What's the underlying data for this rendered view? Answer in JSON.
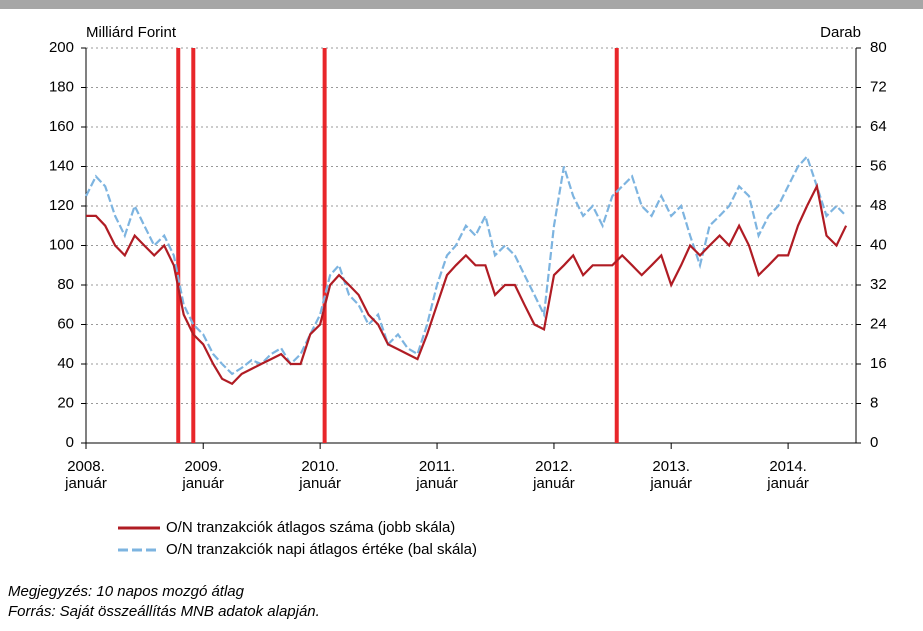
{
  "chart_data": {
    "type": "line",
    "y_label": "Milliárd Forint",
    "y2_label": "Darab",
    "x": [
      "2008-01",
      "2008-02",
      "2008-03",
      "2008-04",
      "2008-05",
      "2008-06",
      "2008-07",
      "2008-08",
      "2008-09",
      "2008-10",
      "2008-11",
      "2008-12",
      "2009-01",
      "2009-02",
      "2009-03",
      "2009-04",
      "2009-05",
      "2009-06",
      "2009-07",
      "2009-08",
      "2009-09",
      "2009-10",
      "2009-11",
      "2009-12",
      "2010-01",
      "2010-02",
      "2010-03",
      "2010-04",
      "2010-05",
      "2010-06",
      "2010-07",
      "2010-08",
      "2010-09",
      "2010-10",
      "2010-11",
      "2010-12",
      "2011-01",
      "2011-02",
      "2011-03",
      "2011-04",
      "2011-05",
      "2011-06",
      "2011-07",
      "2011-08",
      "2011-09",
      "2011-10",
      "2011-11",
      "2011-12",
      "2012-01",
      "2012-02",
      "2012-03",
      "2012-04",
      "2012-05",
      "2012-06",
      "2012-07",
      "2012-08",
      "2012-09",
      "2012-10",
      "2012-11",
      "2012-12",
      "2013-01",
      "2013-02",
      "2013-03",
      "2013-04",
      "2013-05",
      "2013-06",
      "2013-07",
      "2013-08",
      "2013-09",
      "2013-10",
      "2013-11",
      "2013-12",
      "2014-01",
      "2014-02",
      "2014-03",
      "2014-04",
      "2014-05",
      "2014-06",
      "2014-07"
    ],
    "xlim": [
      "2008-01",
      "2014-08"
    ],
    "xticks": [
      {
        "value": "2008-01",
        "label": "2008. január"
      },
      {
        "value": "2009-01",
        "label": "2009. január"
      },
      {
        "value": "2010-01",
        "label": "2010. január"
      },
      {
        "value": "2011-01",
        "label": "2011. január"
      },
      {
        "value": "2012-01",
        "label": "2012. január"
      },
      {
        "value": "2013-01",
        "label": "2013. január"
      },
      {
        "value": "2014-01",
        "label": "2014. január"
      }
    ],
    "ylim": [
      0,
      200
    ],
    "yticks": [
      0,
      20,
      40,
      60,
      80,
      100,
      120,
      140,
      160,
      180,
      200
    ],
    "y2lim": [
      0,
      80
    ],
    "y2ticks": [
      0,
      8,
      16,
      24,
      32,
      40,
      48,
      56,
      64,
      72,
      80
    ],
    "grid": true,
    "vlines": {
      "color": "#e8262a",
      "x": [
        "2008-10-15",
        "2008-12-01",
        "2010-01-15",
        "2012-07-15"
      ]
    },
    "series": [
      {
        "name": "O/N tranzakciók átlagos száma (jobb skála)",
        "color": "#b01c24",
        "axis": "y2",
        "dash": false,
        "values": [
          46,
          46,
          44,
          40,
          38,
          42,
          40,
          38,
          40,
          36,
          26,
          22,
          20,
          16,
          13,
          12,
          14,
          15,
          16,
          17,
          18,
          16,
          16,
          22,
          24,
          32,
          34,
          32,
          30,
          26,
          24,
          20,
          19,
          18,
          17,
          22,
          28,
          34,
          36,
          38,
          36,
          36,
          30,
          32,
          32,
          28,
          24,
          23,
          34,
          36,
          38,
          34,
          36,
          36,
          36,
          38,
          36,
          34,
          36,
          38,
          32,
          36,
          40,
          38,
          40,
          42,
          40,
          44,
          40,
          34,
          36,
          38,
          38,
          44,
          48,
          52,
          42,
          40,
          44
        ]
      },
      {
        "name": "O/N tranzakciók napi átlagos értéke (bal skála)",
        "color": "#7db4e0",
        "axis": "y",
        "dash": true,
        "values": [
          125,
          135,
          130,
          115,
          105,
          120,
          110,
          100,
          105,
          95,
          70,
          60,
          55,
          45,
          40,
          35,
          38,
          42,
          40,
          45,
          48,
          40,
          45,
          55,
          65,
          85,
          90,
          75,
          70,
          60,
          65,
          50,
          55,
          48,
          45,
          60,
          80,
          95,
          100,
          110,
          105,
          115,
          95,
          100,
          95,
          85,
          75,
          65,
          110,
          140,
          125,
          115,
          120,
          110,
          125,
          130,
          135,
          120,
          115,
          125,
          115,
          120,
          105,
          90,
          110,
          115,
          120,
          130,
          125,
          105,
          115,
          120,
          130,
          140,
          145,
          130,
          115,
          120,
          115
        ]
      }
    ],
    "notes": [
      "Megjegyzés: 10 napos mozgó átlag",
      "Forrás: Saját összeállítás MNB adatok alapján."
    ]
  }
}
